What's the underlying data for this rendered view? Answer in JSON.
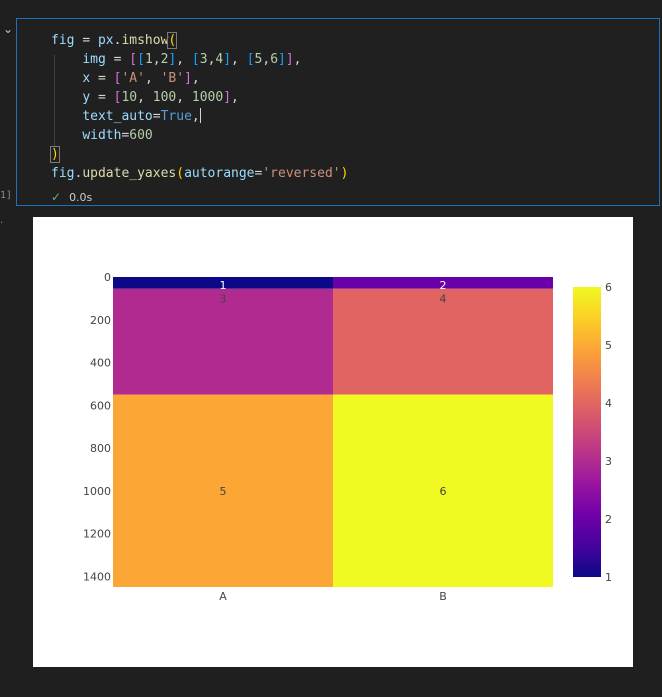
{
  "code_cell": {
    "lines": [
      "fig = px.imshow(",
      "    img = [[1,2], [3,4], [5,6]],",
      "    x = ['A', 'B'],",
      "    y = [10, 100, 1000],",
      "    text_auto=True,",
      "    width=600",
      ")",
      "fig.update_yaxes(autorange='reversed')"
    ],
    "execution_count": "1]",
    "status_time": "0.0s"
  },
  "chart_data": {
    "type": "heatmap",
    "x": [
      "A",
      "B"
    ],
    "y": [
      10,
      100,
      1000
    ],
    "z": [
      [
        1,
        2
      ],
      [
        3,
        4
      ],
      [
        5,
        6
      ]
    ],
    "text_auto": true,
    "y_ticks": [
      0,
      200,
      400,
      600,
      800,
      1000,
      1200,
      1400
    ],
    "ylim": [
      0,
      1450
    ],
    "y_reversed": true,
    "colorscale": "plasma",
    "colorbar_ticks": [
      1,
      2,
      3,
      4,
      5,
      6
    ],
    "colorbar_range": [
      1,
      6
    ],
    "colors": {
      "1": "#0d0887",
      "2": "#6a00a8",
      "3": "#b12a90",
      "4": "#e16462",
      "5": "#fca636",
      "6": "#f0f921"
    }
  }
}
